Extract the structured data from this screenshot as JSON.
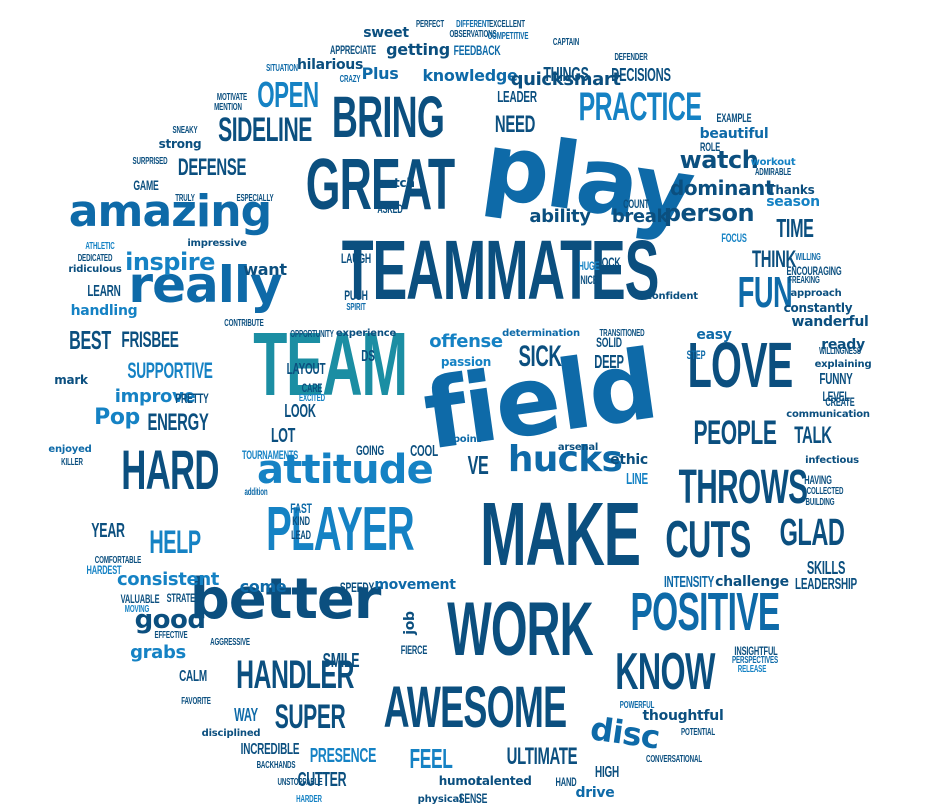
{
  "palette": [
    "#0b4f7f",
    "#0e6aa8",
    "#1582c4",
    "#1f9bd2",
    "#3aa6c9",
    "#1b8ea3",
    "#0c3f6a"
  ],
  "words": [
    "play",
    "TEAMMATES",
    "TEAM",
    "field",
    "MAKE",
    "PLAYER",
    "GREAT",
    "WORK",
    "BRING",
    "better",
    "AWESOME",
    "HARD",
    "POSITIVE",
    "LOVE",
    "really",
    "amazing",
    "CUTS",
    "THROWS",
    "KNOW",
    "FUN",
    "HANDLER",
    "attitude",
    "PRACTICE",
    "hucks",
    "SIDELINE",
    "OPEN",
    "PEOPLE",
    "GLAD",
    "HELP",
    "SUPER",
    "disc",
    "good",
    "inspire",
    "watch",
    "person",
    "SICK",
    "DEFENSE",
    "ENERGY",
    "SUPPORTIVE",
    "consistent",
    "ULTIMATE",
    "FEEL",
    "PRESENCE",
    "CUTTER",
    "SMILE",
    "Pop",
    "BEST",
    "FRISBEE",
    "improve",
    "TIME",
    "THINK",
    "TALK",
    "dominant",
    "ability",
    "break",
    "NEED",
    "LEADER",
    "knowledge",
    "Plus",
    "quick",
    "smart",
    "getting",
    "FEEDBACK",
    "THINGS",
    "DECISIONS",
    "hilarious",
    "sweet",
    "APPRECIATE",
    "YEAR",
    "grabs",
    "come",
    "SKILLS",
    "LEADERSHIP",
    "INCREDIBLE",
    "WAY",
    "CALM",
    "handling",
    "LEARN",
    "want",
    "LAUGH",
    "PUSH",
    "SPIRIT",
    "ROCK",
    "HUGE",
    "NICE",
    "offense",
    "passion",
    "SOLID",
    "DEEP",
    "LAYOUT",
    "CARE",
    "EXCITED",
    "LOOK",
    "DS",
    "VE",
    "LOT",
    "GOING",
    "COOL",
    "ethic",
    "LINE",
    "FAST",
    "KIND",
    "LEAD",
    "SPEEDY",
    "movement",
    "INTENSITY",
    "challenge",
    "thoughtful",
    "HIGH",
    "drive",
    "HAND",
    "talented",
    "humor",
    "SENSE",
    "physical",
    "job",
    "FIERCE",
    "STRATEGY",
    "VALUABLE",
    "MOVING",
    "EFFECTIVE",
    "AGGRESSIVE",
    "FAVORITE",
    "disciplined",
    "BACKHANDS",
    "UNSTOPPABLE",
    "HARDER",
    "COMFORTABLE",
    "HARDEST",
    "TOURNAMENTS",
    "addition",
    "enjoyed",
    "KILLER",
    "mark",
    "PRETTY",
    "CONTRIBUTE",
    "OPPORTUNITY",
    "experience",
    "determination",
    "TRANSITIONED",
    "easy",
    "STEP",
    "ready",
    "WILLINGNESS",
    "explaining",
    "FUNNY",
    "LEVEL",
    "CREATE",
    "communication",
    "infectious",
    "HAVING",
    "COLLECTED",
    "BUILDING",
    "INSIGHTFUL",
    "PERSPECTIVES",
    "RELEASE",
    "POTENTIAL",
    "CONVERSATIONAL",
    "POWERFUL",
    "point",
    "arsenal",
    "confident",
    "FREAKING",
    "approach",
    "constantly",
    "wanderful",
    "WILLING",
    "ENCOURAGING",
    "FOCUS",
    "COUNT",
    "Thanks",
    "season",
    "workout",
    "ADMIRABLE",
    "ROLE",
    "EXAMPLE",
    "beautiful",
    "catch",
    "ASKED",
    "ESPECIALLY",
    "impressive",
    "ATHLETIC",
    "DEDICATED",
    "ridiculous",
    "TRULY",
    "GAME",
    "SURPRISED",
    "SNEAKY",
    "strong",
    "MOTIVATE",
    "MENTION",
    "SITUATION",
    "CRAZY",
    "PERFECT",
    "DIFFERENT",
    "EXCELLENT",
    "OBSERVATIONS",
    "COMPETITIVE",
    "CAPTAIN",
    "DEFENDER"
  ]
}
